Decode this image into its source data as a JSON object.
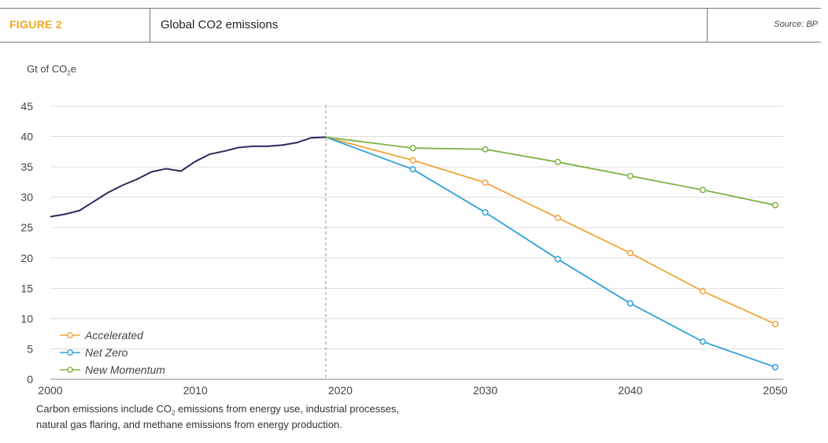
{
  "header": {
    "figure_label": "FIGURE 2",
    "title": "Global CO2 emissions",
    "source": "Source: BP"
  },
  "colors": {
    "figure_label": "#f5a623",
    "history": "#2b2a5c",
    "accelerated": "#f2a33a",
    "net_zero": "#2e9fd8",
    "new_momentum": "#7cb342",
    "grid": "#dddddd"
  },
  "unit_label": {
    "prefix": "Gt of CO",
    "sub": "2",
    "suffix": "e"
  },
  "footnote": {
    "part1": "Carbon emissions include CO",
    "sub": "2",
    "part2": " emissions from energy use, industrial processes,",
    "line2": "natural gas flaring, and methane emissions from energy production."
  },
  "chart_data": {
    "type": "line",
    "title": "Global CO2 emissions",
    "ylabel": "Gt of CO2e",
    "xlabel": "",
    "xlim": [
      2000,
      2050
    ],
    "ylim": [
      0,
      45
    ],
    "x_ticks": [
      2000,
      2010,
      2020,
      2030,
      2040,
      2050
    ],
    "y_ticks": [
      0,
      5,
      10,
      15,
      20,
      25,
      30,
      35,
      40,
      45
    ],
    "grid": true,
    "divider_x": 2019,
    "legend_position": "bottom-left",
    "series": [
      {
        "key": "history",
        "markers": false,
        "x": [
          2000,
          2001,
          2002,
          2003,
          2004,
          2005,
          2006,
          2007,
          2008,
          2009,
          2010,
          2011,
          2012,
          2013,
          2014,
          2015,
          2016,
          2017,
          2018,
          2019
        ],
        "values": [
          26.8,
          27.2,
          27.8,
          29.3,
          30.8,
          32.0,
          33.0,
          34.2,
          34.7,
          34.3,
          35.9,
          37.1,
          37.6,
          38.2,
          38.4,
          38.4,
          38.6,
          39.0,
          39.8,
          39.9
        ]
      },
      {
        "key": "accelerated",
        "name": "Accelerated",
        "markers": true,
        "x": [
          2019,
          2025,
          2030,
          2035,
          2040,
          2045,
          2050
        ],
        "values": [
          39.9,
          36.1,
          32.4,
          26.6,
          20.8,
          14.5,
          9.1
        ]
      },
      {
        "key": "net_zero",
        "name": "Net Zero",
        "markers": true,
        "x": [
          2019,
          2025,
          2030,
          2035,
          2040,
          2045,
          2050
        ],
        "values": [
          39.9,
          34.6,
          27.5,
          19.8,
          12.5,
          6.2,
          2.0
        ]
      },
      {
        "key": "new_momentum",
        "name": "New Momentum",
        "markers": true,
        "x": [
          2019,
          2025,
          2030,
          2035,
          2040,
          2045,
          2050
        ],
        "values": [
          39.9,
          38.1,
          37.9,
          35.8,
          33.5,
          31.2,
          28.7
        ]
      }
    ]
  }
}
